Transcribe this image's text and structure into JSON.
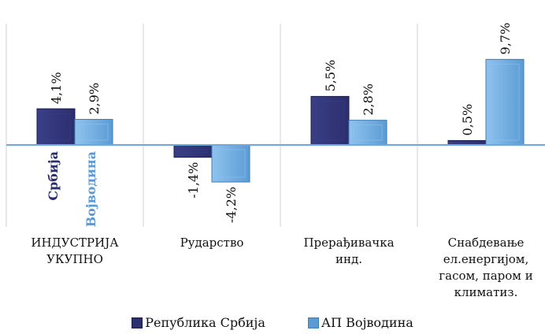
{
  "chart_data": {
    "type": "bar",
    "categories": [
      "ИНДУСТРИЈА\nУКУПНО",
      "Рударство",
      "Прерађивачка\nинд.",
      "Снабдевање\nел.енергијом,\nгасом, паром и\nклиматиз."
    ],
    "series": [
      {
        "name": "Република Србија",
        "values": [
          4.1,
          -1.4,
          5.5,
          0.5
        ],
        "labels": [
          "4,1%",
          "-1,4%",
          "5,5%",
          "0,5%"
        ],
        "color": "#2b2f6e"
      },
      {
        "name": "АП Војводина",
        "values": [
          2.9,
          -4.2,
          2.8,
          9.7
        ],
        "labels": [
          "2,9%",
          "-4,2%",
          "2,8%",
          "9,7%"
        ],
        "color": "#5b9bd5"
      }
    ],
    "annotations": [
      {
        "text": "Србија",
        "color": "#2b2f6e"
      },
      {
        "text": "Војводина",
        "color": "#5b9bd5"
      }
    ],
    "ylim": [
      -7,
      13
    ],
    "grid": false,
    "legend": "bottom"
  }
}
